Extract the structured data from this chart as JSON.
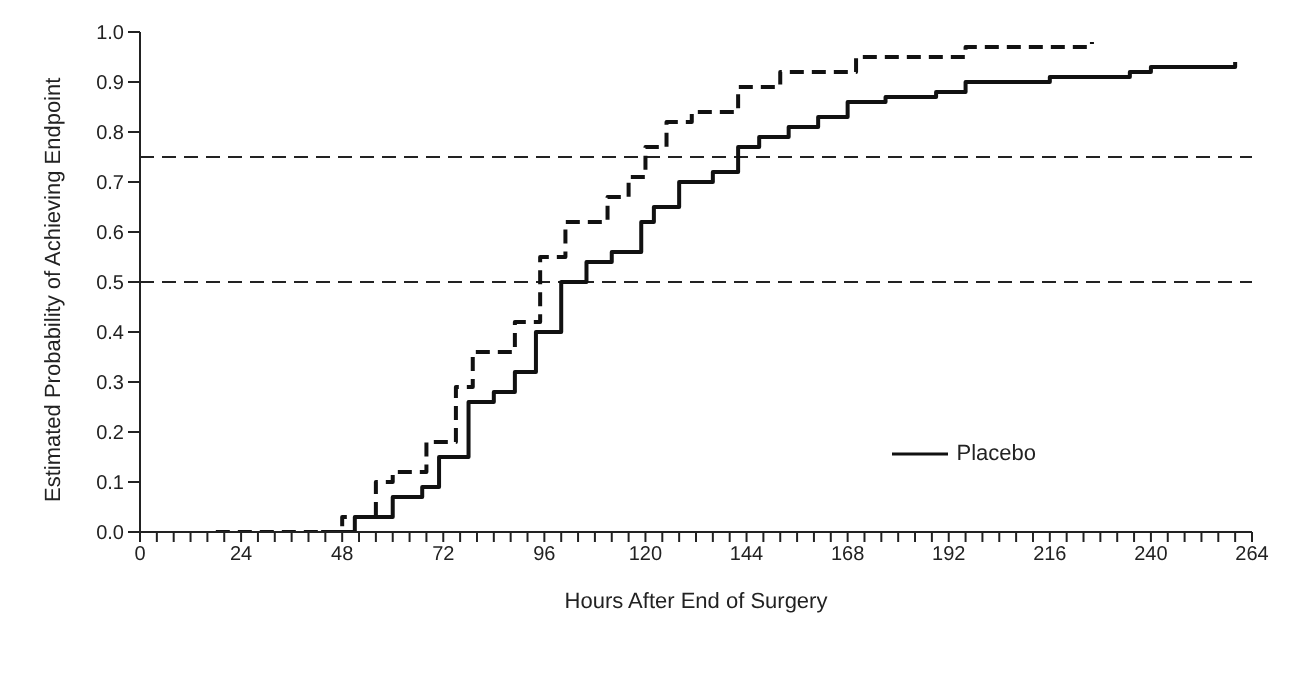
{
  "chart_data": {
    "type": "step",
    "xlabel": "Hours After End of Surgery",
    "ylabel": "Estimated Probability of Achieving Endpoint",
    "xlim": [
      0,
      264
    ],
    "ylim": [
      0,
      1
    ],
    "xticks": [
      0,
      {
        "value": 4,
        "label": null
      },
      {
        "value": 8,
        "label": null
      },
      {
        "value": 12,
        "label": null
      },
      {
        "value": 16,
        "label": null
      },
      {
        "value": 20,
        "label": null
      },
      24,
      {
        "value": 28,
        "label": null
      },
      {
        "value": 32,
        "label": null
      },
      {
        "value": 36,
        "label": null
      },
      {
        "value": 40,
        "label": null
      },
      {
        "value": 44,
        "label": null
      },
      48,
      {
        "value": 52,
        "label": null
      },
      {
        "value": 56,
        "label": null
      },
      {
        "value": 60,
        "label": null
      },
      {
        "value": 64,
        "label": null
      },
      {
        "value": 68,
        "label": null
      },
      72,
      {
        "value": 76,
        "label": null
      },
      {
        "value": 80,
        "label": null
      },
      {
        "value": 84,
        "label": null
      },
      {
        "value": 88,
        "label": null
      },
      {
        "value": 92,
        "label": null
      },
      96,
      {
        "value": 100,
        "label": null
      },
      {
        "value": 104,
        "label": null
      },
      {
        "value": 108,
        "label": null
      },
      {
        "value": 112,
        "label": null
      },
      {
        "value": 116,
        "label": null
      },
      120,
      {
        "value": 124,
        "label": null
      },
      {
        "value": 128,
        "label": null
      },
      {
        "value": 132,
        "label": null
      },
      {
        "value": 136,
        "label": null
      },
      {
        "value": 140,
        "label": null
      },
      144,
      {
        "value": 148,
        "label": null
      },
      {
        "value": 152,
        "label": null
      },
      {
        "value": 156,
        "label": null
      },
      {
        "value": 160,
        "label": null
      },
      {
        "value": 164,
        "label": null
      },
      168,
      {
        "value": 172,
        "label": null
      },
      {
        "value": 176,
        "label": null
      },
      {
        "value": 180,
        "label": null
      },
      {
        "value": 184,
        "label": null
      },
      {
        "value": 188,
        "label": null
      },
      192,
      {
        "value": 196,
        "label": null
      },
      {
        "value": 200,
        "label": null
      },
      {
        "value": 204,
        "label": null
      },
      {
        "value": 208,
        "label": null
      },
      {
        "value": 212,
        "label": null
      },
      216,
      {
        "value": 220,
        "label": null
      },
      {
        "value": 224,
        "label": null
      },
      {
        "value": 228,
        "label": null
      },
      {
        "value": 232,
        "label": null
      },
      {
        "value": 236,
        "label": null
      },
      240,
      {
        "value": 244,
        "label": null
      },
      {
        "value": 248,
        "label": null
      },
      {
        "value": 252,
        "label": null
      },
      {
        "value": 256,
        "label": null
      },
      {
        "value": 260,
        "label": null
      },
      264
    ],
    "yticks": [
      {
        "value": 0,
        "label": "0.0"
      },
      {
        "value": 0.1,
        "label": "0.1"
      },
      {
        "value": 0.2,
        "label": "0.2"
      },
      {
        "value": 0.3,
        "label": "0.3"
      },
      {
        "value": 0.4,
        "label": "0.4"
      },
      {
        "value": 0.5,
        "label": "0.5"
      },
      {
        "value": 0.6,
        "label": "0.6"
      },
      {
        "value": 0.7,
        "label": "0.7"
      },
      {
        "value": 0.8,
        "label": "0.8"
      },
      {
        "value": 0.9,
        "label": "0.9"
      },
      {
        "value": 1,
        "label": "1.0"
      }
    ],
    "ref_lines": [
      {
        "axis": "y",
        "value": 0.5,
        "label": null,
        "color": "#222222",
        "line_style": "dashed"
      },
      {
        "axis": "y",
        "value": 0.75,
        "label": null,
        "color": "#222222",
        "line_style": "dashed"
      }
    ],
    "legend": "bottom right",
    "marker": "none",
    "grid": false,
    "series": [
      {
        "color": "#111111",
        "line_style": "dashed",
        "x": [
          18,
          42,
          48,
          56,
          60,
          68,
          75,
          79,
          89,
          95,
          101,
          111,
          116,
          120,
          125,
          131,
          142,
          152,
          161,
          170,
          189,
          196,
          226
        ],
        "values": [
          0,
          0,
          0.03,
          0.1,
          0.12,
          0.18,
          0.29,
          0.36,
          0.42,
          0.55,
          0.62,
          0.67,
          0.71,
          0.77,
          0.82,
          0.84,
          0.89,
          0.92,
          0.92,
          0.95,
          0.95,
          0.97,
          0.98
        ]
      },
      {
        "name": "Placebo",
        "color": "#111111",
        "line_style": "solid",
        "x": [
          43,
          51,
          60,
          67,
          71,
          78,
          84,
          89,
          94,
          100,
          106,
          112,
          119,
          122,
          128,
          136,
          142,
          147,
          154,
          161,
          168,
          177,
          189,
          196,
          216,
          235,
          240,
          260
        ],
        "values": [
          0,
          0.03,
          0.07,
          0.09,
          0.15,
          0.26,
          0.28,
          0.32,
          0.4,
          0.5,
          0.54,
          0.56,
          0.62,
          0.65,
          0.7,
          0.72,
          0.77,
          0.79,
          0.81,
          0.83,
          0.86,
          0.87,
          0.88,
          0.9,
          0.91,
          0.92,
          0.93,
          0.94
        ]
      }
    ]
  }
}
